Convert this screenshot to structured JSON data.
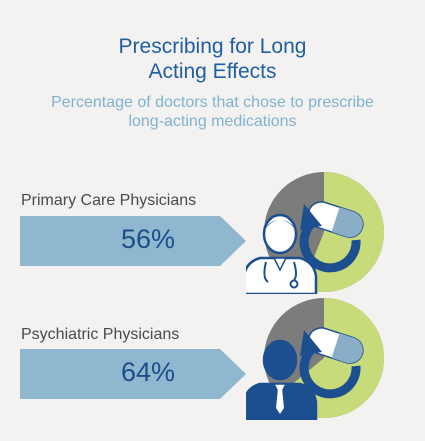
{
  "header": {
    "title_line1": "Prescribing for Long",
    "title_line2": "Acting Effects",
    "subtitle_line1": "Percentage of doctors that chose to prescribe",
    "subtitle_line2": "long-acting medications"
  },
  "colors": {
    "background": "#f3f2f1",
    "title": "#1f5fa3",
    "subtitle": "#7fb3cf",
    "arrow_fill": "#8fb7cf",
    "percent_text": "#1c4e88",
    "pie_share": "#c8db7a",
    "pie_rest": "#7c7c7c",
    "doctor_blue": "#1c4f8f",
    "pill_blue": "#8aaec8"
  },
  "chart_data": {
    "type": "pie",
    "title": "Prescribing for Long Acting Effects",
    "subtitle": "Percentage of doctors that chose to prescribe long-acting medications",
    "categories": [
      "Primary Care Physicians",
      "Psychiatric Physicians"
    ],
    "values": [
      56,
      64
    ],
    "value_labels": [
      "56%",
      "64%"
    ],
    "unit": "%"
  }
}
